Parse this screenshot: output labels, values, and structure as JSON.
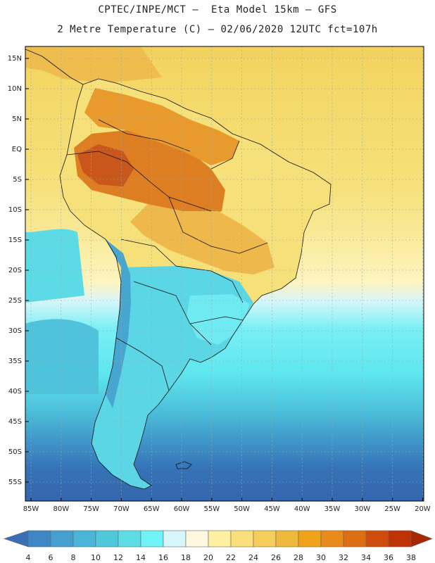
{
  "header": {
    "title_line1": "CPTEC/INPE/MCT –  Eta Model 15km – GFS",
    "title_line2": "2 Metre Temperature (C) – 02/06/2020 12UTC fct=107h"
  },
  "latitude_labels": [
    "15N",
    "10N",
    "5N",
    "EQ",
    "5S",
    "10S",
    "15S",
    "20S",
    "25S",
    "30S",
    "35S",
    "40S",
    "45S",
    "50S",
    "55S"
  ],
  "longitude_labels": [
    "85W",
    "80W",
    "75W",
    "70W",
    "65W",
    "60W",
    "55W",
    "50W",
    "45W",
    "40W",
    "35W",
    "30W",
    "25W",
    "20W"
  ],
  "colorbar": {
    "labels": [
      "4",
      "6",
      "8",
      "10",
      "12",
      "14",
      "16",
      "18",
      "20",
      "22",
      "24",
      "26",
      "28",
      "30",
      "32",
      "34",
      "36",
      "38"
    ],
    "colors": [
      "#3a6eb5",
      "#3f86c4",
      "#46a0cf",
      "#4ab5d6",
      "#50c8dc",
      "#5edce6",
      "#6ff3f6",
      "#d6f6fa",
      "#fff8e0",
      "#fdf0a0",
      "#f9e07c",
      "#f4cd5a",
      "#eeb83c",
      "#f0a21a",
      "#e88a1c",
      "#dd6f12",
      "#cf4d0c",
      "#bf3206",
      "#a82804"
    ]
  }
}
